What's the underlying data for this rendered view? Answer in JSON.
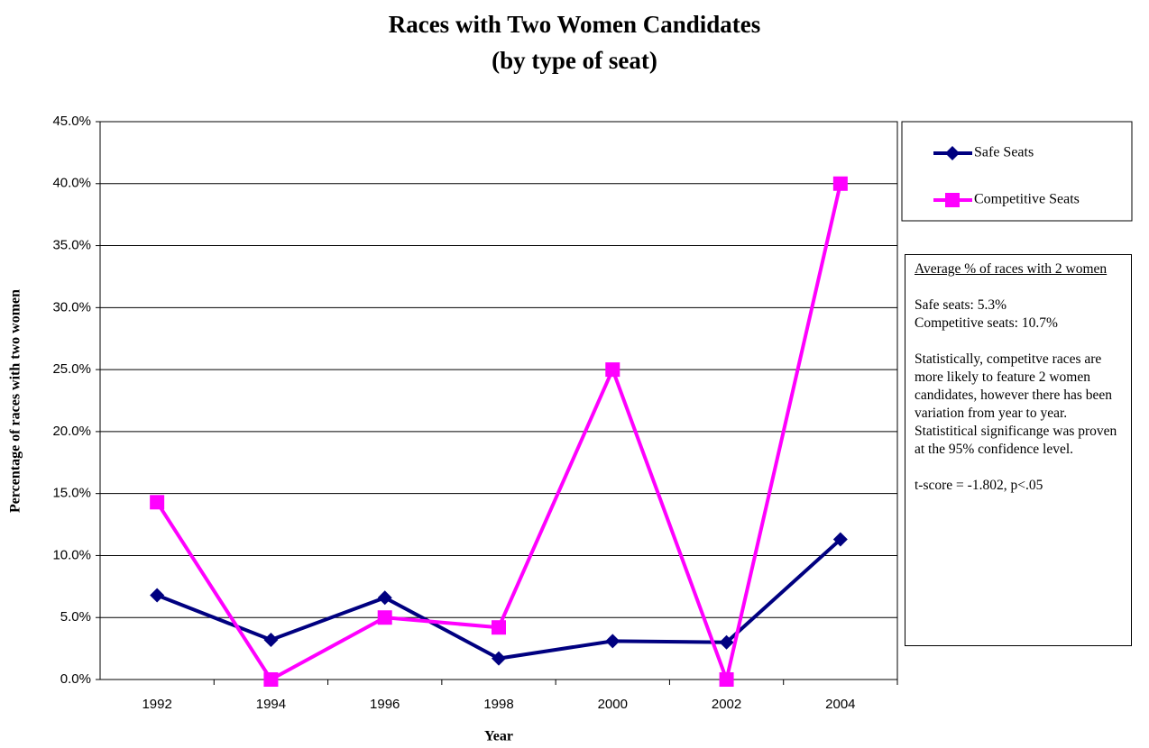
{
  "chart_data": {
    "type": "line",
    "title": "Races with Two Women Candidates",
    "subtitle": "(by type of seat)",
    "x_label": "Year",
    "y_label": "Percentage of races with two women",
    "categories": [
      "1992",
      "1994",
      "1996",
      "1998",
      "2000",
      "2002",
      "2004"
    ],
    "series": [
      {
        "name": "Safe Seats",
        "color": "#000080",
        "marker": "diamond",
        "values": [
          6.8,
          3.2,
          6.6,
          1.7,
          3.1,
          3.0,
          11.3
        ]
      },
      {
        "name": "Competitive Seats",
        "color": "#ff00ff",
        "marker": "square",
        "values": [
          14.3,
          0,
          5.0,
          4.2,
          25.0,
          0,
          40.0
        ]
      }
    ],
    "ylim": [
      0,
      45
    ],
    "yticks": [
      {
        "value": 0,
        "label": "0.0%"
      },
      {
        "value": 5,
        "label": "5.0%"
      },
      {
        "value": 10,
        "label": "10.0%"
      },
      {
        "value": 15,
        "label": "15.0%"
      },
      {
        "value": 20,
        "label": "20.0%"
      },
      {
        "value": 25,
        "label": "25.0%"
      },
      {
        "value": 30,
        "label": "30.0%"
      },
      {
        "value": 35,
        "label": "35.0%"
      },
      {
        "value": 40,
        "label": "40.0%"
      },
      {
        "value": 45,
        "label": "45.0%"
      }
    ],
    "grid": true,
    "legend": "right",
    "annotation": {
      "heading": "Average % of races with 2 women",
      "lines": [
        "Safe seats:  5.3%",
        "Competitive seats:  10.7%"
      ],
      "paragraph": "Statistically, competitve races are more likely to feature 2 women candidates, however there has been variation from year to year.  Statistitical significange was proven at the 95% confidence level.",
      "stat": "t-score = -1.802, p<.05"
    }
  }
}
